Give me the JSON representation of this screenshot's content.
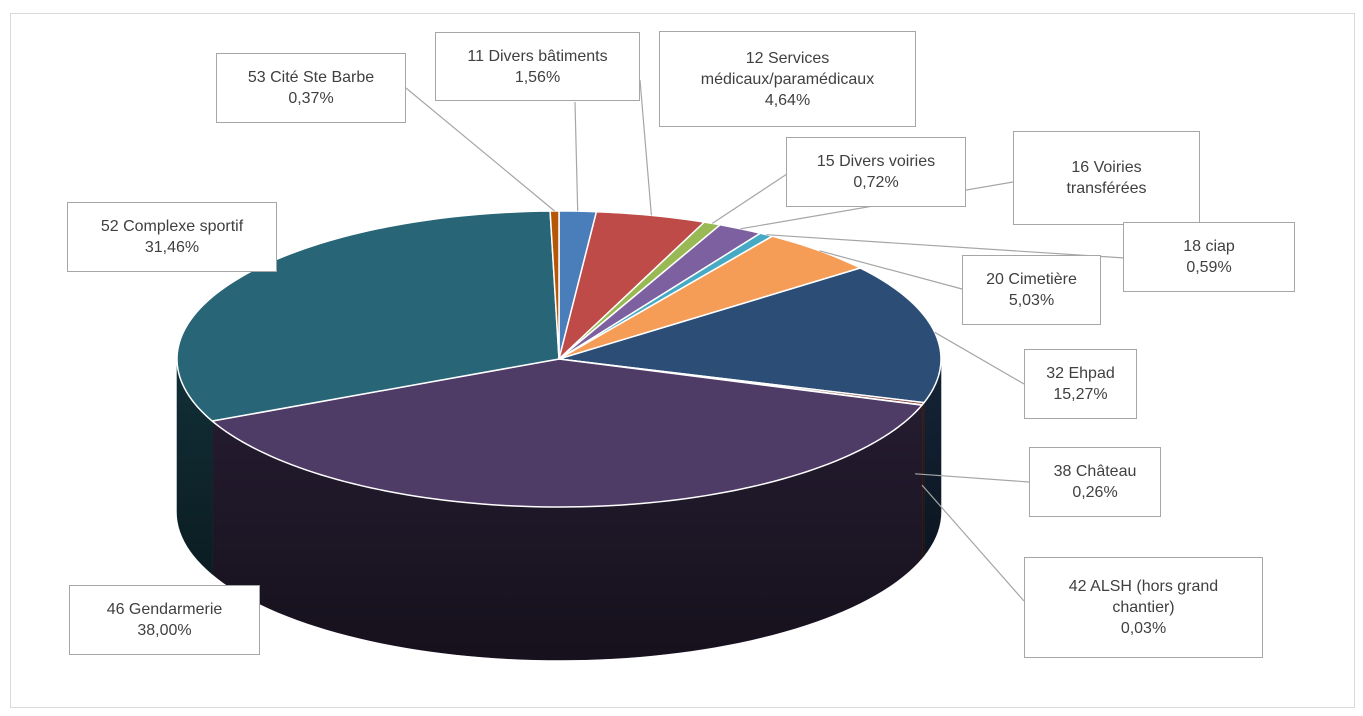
{
  "chart_data": {
    "type": "pie",
    "style": "3d-exploded-none",
    "start_angle_deg": -90,
    "slices": [
      {
        "label": "11 Divers bâtiments",
        "name_lines": [
          "11 Divers bâtiments"
        ],
        "percent_text": "1,56%",
        "value": 1.56,
        "color": "#4a7ebb"
      },
      {
        "label": "12 Services médicaux/paramédicaux",
        "name_lines": [
          "12 Services",
          "médicaux/paramédicaux"
        ],
        "percent_text": "4,64%",
        "value": 4.64,
        "color": "#be4b48"
      },
      {
        "label": "15 Divers voiries",
        "name_lines": [
          "15 Divers voiries"
        ],
        "percent_text": "0,72%",
        "value": 0.72,
        "color": "#98b954"
      },
      {
        "label": "16 Voiries transférées",
        "name_lines": [
          "16 Voiries",
          "transférées"
        ],
        "percent_text": "",
        "value": 1.9,
        "color": "#7d60a0"
      },
      {
        "label": "18 ciap",
        "name_lines": [
          "18 ciap"
        ],
        "percent_text": "0,59%",
        "value": 0.59,
        "color": "#46aac5"
      },
      {
        "label": "20 Cimetière",
        "name_lines": [
          "20 Cimetière"
        ],
        "percent_text": "5,03%",
        "value": 5.03,
        "color": "#f59d56"
      },
      {
        "label": "32 Ehpad",
        "name_lines": [
          "32 Ehpad"
        ],
        "percent_text": "15,27%",
        "value": 15.27,
        "color": "#2c4d75"
      },
      {
        "label": "38 Château",
        "name_lines": [
          "38 Château"
        ],
        "percent_text": "0,26%",
        "value": 0.26,
        "color": "#7f3b3a"
      },
      {
        "label": "42 ALSH (hors grand chantier)",
        "name_lines": [
          "42 ALSH (hors grand",
          "chantier)"
        ],
        "percent_text": "0,03%",
        "value": 0.03,
        "color": "#5f7530"
      },
      {
        "label": "46 Gendarmerie",
        "name_lines": [
          "46 Gendarmerie"
        ],
        "percent_text": "38,00%",
        "value": 38.0,
        "color": "#4e3b66"
      },
      {
        "label": "52 Complexe sportif",
        "name_lines": [
          "52 Complexe sportif"
        ],
        "percent_text": "31,46%",
        "value": 31.46,
        "color": "#276577"
      },
      {
        "label": "53 Cité Ste Barbe",
        "name_lines": [
          "53 Cité Ste Barbe"
        ],
        "percent_text": "0,37%",
        "value": 0.37,
        "color": "#b65708"
      }
    ],
    "legend": "none",
    "data_labels": "callout-boxes-with-leader-lines"
  }
}
